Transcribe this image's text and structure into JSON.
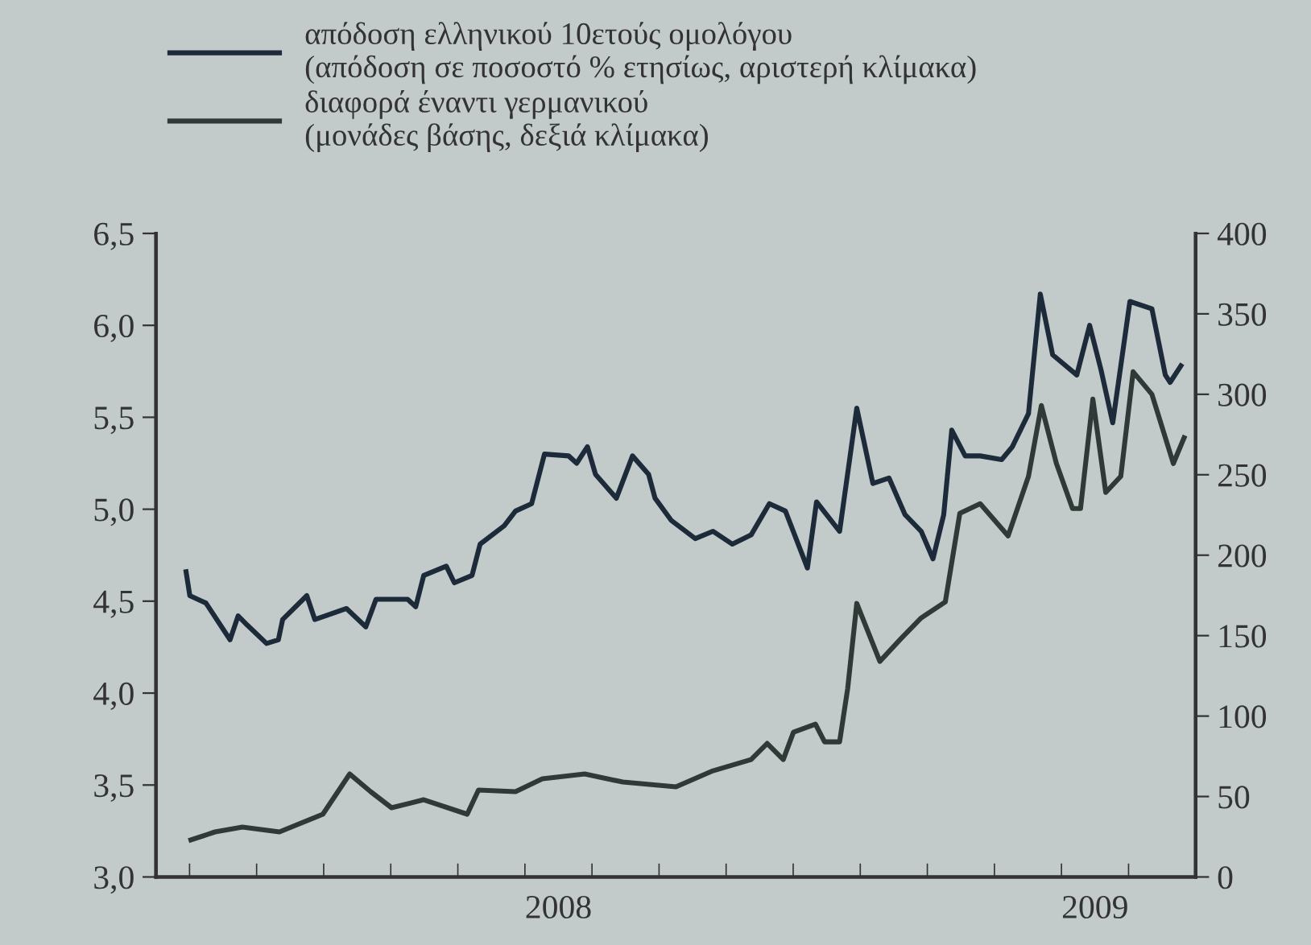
{
  "chart_data": {
    "type": "line",
    "series": [
      {
        "name": "απόδοση ελληνικού 10ετούς ομολόγου\n(απόδοση σε ποσοστό % ετησίως, αριστερή κλίμακα)",
        "color": "#1c2a3a",
        "axis": "y",
        "x": [
          2007.306,
          2007.313,
          2007.343,
          2007.388,
          2007.403,
          2007.42,
          2007.456,
          2007.478,
          2007.486,
          2007.531,
          2007.546,
          2007.605,
          2007.641,
          2007.66,
          2007.719,
          2007.734,
          2007.749,
          2007.791,
          2007.806,
          2007.839,
          2007.854,
          2007.899,
          2007.92,
          2007.95,
          2007.974,
          2008.019,
          2008.034,
          2008.054,
          2008.069,
          2008.108,
          2008.138,
          2008.168,
          2008.18,
          2008.21,
          2008.255,
          2008.288,
          2008.324,
          2008.359,
          2008.393,
          2008.423,
          2008.464,
          2008.481,
          2008.524,
          2008.556,
          2008.586,
          2008.616,
          2008.646,
          2008.676,
          2008.698,
          2008.718,
          2008.733,
          2008.758,
          2008.786,
          2008.826,
          2008.846,
          2008.876,
          2008.898,
          2008.921,
          2008.966,
          2008.99,
          2009.011,
          2009.033,
          2009.065,
          2009.106,
          2009.131,
          2009.14,
          2009.16
        ],
        "values": [
          4.66,
          4.53,
          4.49,
          4.29,
          4.42,
          4.37,
          4.27,
          4.29,
          4.4,
          4.53,
          4.4,
          4.46,
          4.36,
          4.51,
          4.51,
          4.47,
          4.64,
          4.69,
          4.6,
          4.64,
          4.81,
          4.91,
          4.99,
          5.03,
          5.3,
          5.29,
          5.25,
          5.34,
          5.19,
          5.06,
          5.29,
          5.19,
          5.06,
          4.94,
          4.84,
          4.88,
          4.81,
          4.86,
          5.03,
          4.99,
          4.68,
          5.04,
          4.88,
          5.55,
          5.14,
          5.17,
          4.97,
          4.88,
          4.73,
          4.97,
          5.43,
          5.29,
          5.29,
          5.27,
          5.34,
          5.52,
          6.17,
          5.84,
          5.73,
          6.0,
          5.76,
          5.47,
          6.13,
          6.09,
          5.73,
          5.69,
          5.78
        ]
      },
      {
        "name": "διαφορά έναντι γερμανικού\n(μονάδες βάσης, δεξιά κλίμακα)",
        "color": "#2f3a36",
        "axis": "y2",
        "x": [
          2007.315,
          2007.36,
          2007.411,
          2007.48,
          2007.561,
          2007.611,
          2007.65,
          2007.689,
          2007.749,
          2007.83,
          2007.851,
          2007.92,
          2007.97,
          2008.049,
          2008.12,
          2008.219,
          2008.288,
          2008.359,
          2008.389,
          2008.419,
          2008.438,
          2008.479,
          2008.496,
          2008.524,
          2008.539,
          2008.556,
          2008.599,
          2008.638,
          2008.676,
          2008.721,
          2008.748,
          2008.786,
          2008.838,
          2008.876,
          2008.9,
          2008.928,
          2008.958,
          2008.973,
          2008.996,
          2009.02,
          2009.048,
          2009.071,
          2009.106,
          2009.146,
          2009.166
        ],
        "values": [
          23,
          28,
          31,
          28,
          39,
          64,
          53,
          43,
          48,
          39,
          54,
          53,
          61,
          64,
          59,
          56,
          66,
          73,
          83,
          73,
          90,
          95,
          84,
          84,
          117,
          170,
          134,
          148,
          161,
          171,
          226,
          232,
          212,
          249,
          293,
          257,
          229,
          229,
          297,
          239,
          249,
          314,
          300,
          257,
          273
        ]
      }
    ],
    "xlim": [
      2007.25,
      2009.1875
    ],
    "xticks": [
      {
        "value": 2007.3125,
        "label": null
      },
      {
        "value": 2007.4375,
        "label": null
      },
      {
        "value": 2007.5625,
        "label": null
      },
      {
        "value": 2007.6875,
        "label": null
      },
      {
        "value": 2007.8125,
        "label": null
      },
      {
        "value": 2007.9375,
        "label": null
      },
      {
        "value": 2008.0625,
        "label": null
      },
      {
        "value": 2008.1875,
        "label": null
      },
      {
        "value": 2008.3125,
        "label": null
      },
      {
        "value": 2008.4375,
        "label": null
      },
      {
        "value": 2008.5625,
        "label": null
      },
      {
        "value": 2008.6875,
        "label": null
      },
      {
        "value": 2008.8125,
        "label": null
      },
      {
        "value": 2008.9375,
        "label": null
      },
      {
        "value": 2009.0625,
        "label": null
      },
      2008,
      2009
    ],
    "ylim": [
      3.0,
      6.5
    ],
    "yticks": [
      {
        "value": 3.0,
        "label": "3,0"
      },
      {
        "value": 3.5,
        "label": "3,5"
      },
      {
        "value": 4.0,
        "label": "4,0"
      },
      {
        "value": 4.5,
        "label": "4,5"
      },
      {
        "value": 5.0,
        "label": "5,0"
      },
      {
        "value": 5.5,
        "label": "5,5"
      },
      {
        "value": 6.0,
        "label": "6,0"
      },
      {
        "value": 6.5,
        "label": "6,5"
      }
    ],
    "y2lim": [
      0,
      400
    ],
    "y2ticks": [
      0,
      50,
      100,
      150,
      200,
      250,
      300,
      350,
      400
    ],
    "legend": "top left",
    "grid": false,
    "line_style": "solid",
    "marker": "none"
  }
}
